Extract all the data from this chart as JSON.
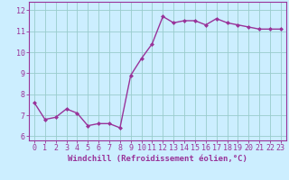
{
  "x": [
    0,
    1,
    2,
    3,
    4,
    5,
    6,
    7,
    8,
    9,
    10,
    11,
    12,
    13,
    14,
    15,
    16,
    17,
    18,
    19,
    20,
    21,
    22,
    23
  ],
  "y": [
    7.6,
    6.8,
    6.9,
    7.3,
    7.1,
    6.5,
    6.6,
    6.6,
    6.4,
    8.9,
    9.7,
    10.4,
    11.7,
    11.4,
    11.5,
    11.5,
    11.3,
    11.6,
    11.4,
    11.3,
    11.2,
    11.1,
    11.1,
    11.1
  ],
  "line_color": "#993399",
  "marker": "D",
  "marker_size": 2.0,
  "bg_color": "#cceeff",
  "grid_color": "#99cccc",
  "xlabel": "Windchill (Refroidissement éolien,°C)",
  "xlabel_color": "#993399",
  "xlabel_fontsize": 6.5,
  "ytick_labels": [
    "6",
    "7",
    "8",
    "9",
    "10",
    "11",
    "12"
  ],
  "ylim": [
    5.8,
    12.4
  ],
  "xlim": [
    -0.5,
    23.5
  ],
  "tick_color": "#993399",
  "tick_fontsize": 6.0,
  "axis_color": "#993399",
  "line_width": 1.0
}
